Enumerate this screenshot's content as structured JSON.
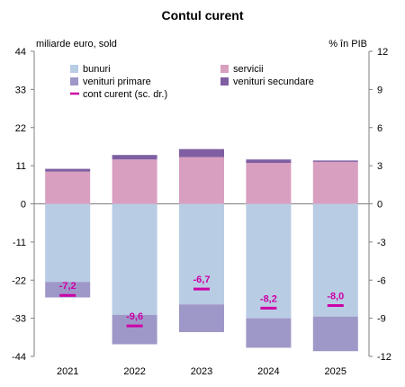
{
  "chart_data": {
    "type": "bar",
    "title": "Contul curent",
    "left_axis_unit": "miliarde euro, sold",
    "right_axis_unit": "% în PIB",
    "categories": [
      "2021",
      "2022",
      "2023",
      "2024",
      "2025"
    ],
    "ylim_left": [
      -44,
      44
    ],
    "yticks_left": [
      44,
      33,
      22,
      11,
      0,
      -11,
      -22,
      -33,
      -44
    ],
    "ylim_right": [
      -12,
      12
    ],
    "yticks_right": [
      12,
      9,
      6,
      3,
      0,
      -3,
      -6,
      -9,
      -12
    ],
    "series": [
      {
        "name": "bunuri",
        "color": "#b8cce4",
        "axis": "left",
        "values": [
          -22.5,
          -32.0,
          -29.0,
          -33.0,
          -32.5
        ]
      },
      {
        "name": "servicii",
        "color": "#d99fc0",
        "axis": "left",
        "values": [
          9.3,
          12.8,
          13.5,
          11.8,
          12.1
        ]
      },
      {
        "name": "venituri primare",
        "color": "#9e98c8",
        "axis": "left",
        "values": [
          -4.5,
          -8.5,
          -8.0,
          -8.5,
          -10.0
        ]
      },
      {
        "name": "venituri secundare",
        "color": "#7f5fa2",
        "axis": "left",
        "values": [
          0.8,
          1.3,
          2.3,
          1.0,
          0.4
        ]
      },
      {
        "name": "cont curent (sc. dr.)",
        "color": "#cc00a6",
        "axis": "right",
        "values": [
          -7.2,
          -9.6,
          -6.7,
          -8.2,
          -8.0
        ],
        "labels": [
          "-7,2",
          "-9,6",
          "-6,7",
          "-8,2",
          "-8,0"
        ]
      }
    ],
    "grid": false,
    "legend_position": "top"
  }
}
